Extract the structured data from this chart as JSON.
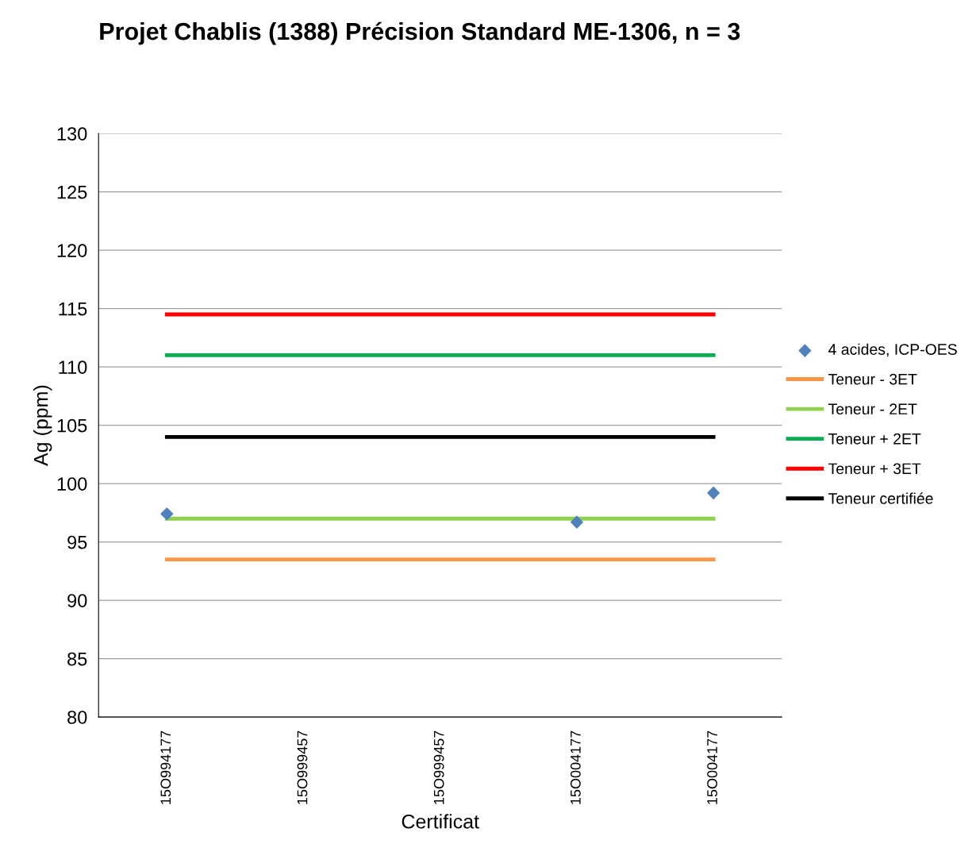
{
  "chart_data": {
    "type": "line",
    "title": "Projet Chablis (1388) Précision Standard ME-1306, n = 3",
    "xlabel": "Certificat",
    "ylabel": "Ag (ppm)",
    "categories": [
      "15O994177",
      "15O999457",
      "15O999457",
      "15O004177",
      "15O004177"
    ],
    "ylim": [
      80,
      130
    ],
    "yticks": [
      80,
      85,
      90,
      95,
      100,
      105,
      110,
      115,
      120,
      125,
      130
    ],
    "grid": "y",
    "legend": "right",
    "series": [
      {
        "name": "4 acides, ICP-OES",
        "type": "scatter",
        "marker": "diamond",
        "color": "#4f81bd",
        "values": [
          97.4,
          null,
          null,
          96.7,
          99.2
        ]
      },
      {
        "name": "Teneur - 3ET",
        "color": "#f79646",
        "values": [
          93.5,
          93.5,
          93.5,
          93.5,
          93.5
        ]
      },
      {
        "name": "Teneur - 2ET",
        "color": "#92d050",
        "values": [
          97.0,
          97.0,
          97.0,
          97.0,
          97.0
        ]
      },
      {
        "name": "Teneur + 2ET",
        "color": "#00b050",
        "values": [
          111.0,
          111.0,
          111.0,
          111.0,
          111.0
        ]
      },
      {
        "name": "Teneur + 3ET",
        "color": "#ff0000",
        "values": [
          114.5,
          114.5,
          114.5,
          114.5,
          114.5
        ]
      },
      {
        "name": "Teneur certifiée",
        "color": "#000000",
        "values": [
          104.0,
          104.0,
          104.0,
          104.0,
          104.0
        ]
      }
    ]
  }
}
